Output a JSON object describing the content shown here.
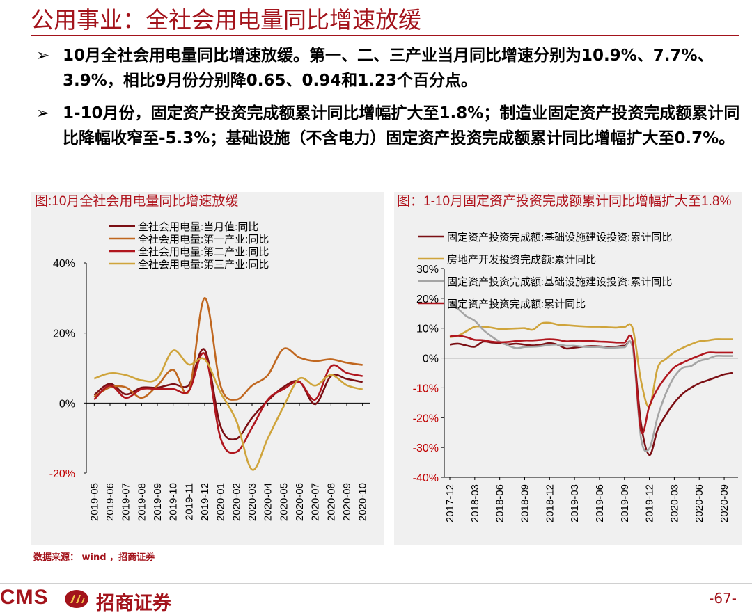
{
  "page": {
    "title": "公用事业：全社会用电量同比增速放缓",
    "bullet_marker": "➢",
    "bullets": [
      "10月全社会用电量同比增速放缓。第一、二、三产业当月同比增速分别为10.9%、7.7%、3.9%，相比9月份分别降0.65、0.94和1.23个百分点。",
      "1-10月份，固定资产投资完成额累计同比增幅扩大至1.8%；制造业固定资产投资完成额累计同比降幅收窄至-5.3%；基础设施（不含电力）固定资产投资完成额累计同比增幅扩大至0.7%。"
    ],
    "source": "数据来源： wind ，招商证券",
    "logo_text": "CMS",
    "logo_cn": "招商证券",
    "page_number": "-67-"
  },
  "chart_data": [
    {
      "type": "line",
      "title": "图:10月全社会用电量同比增速放缓",
      "categories": [
        "2019-05",
        "2019-06",
        "2019-07",
        "2019-08",
        "2019-09",
        "2019-10",
        "2019-11",
        "2019-12",
        "2020-01",
        "2020-02",
        "2020-03",
        "2020-04",
        "2020-05",
        "2020-06",
        "2020-07",
        "2020-08",
        "2020-09",
        "2020-10"
      ],
      "yticks": [
        "40%",
        "20%",
        "0%",
        "-20%"
      ],
      "ylim": [
        -20,
        40
      ],
      "legend_position": "top",
      "series": [
        {
          "name": "全社会用电量:当月值:同比",
          "color": "#7b0f14",
          "values": [
            2.3,
            5.5,
            2.5,
            4.4,
            4.4,
            5.4,
            5.2,
            15.2,
            -6.6,
            -10.2,
            -4.2,
            0.7,
            4.6,
            6.1,
            -0.3,
            7.7,
            6.9,
            6.0
          ]
        },
        {
          "name": "全社会用电量:第一产业:同比",
          "color": "#c0671f",
          "values": [
            1.8,
            4.5,
            4.5,
            1.5,
            5.0,
            9.5,
            3.5,
            30.0,
            5.0,
            1.0,
            5.0,
            8.0,
            15.5,
            13.0,
            12.0,
            12.5,
            11.5,
            10.9
          ]
        },
        {
          "name": "全社会用电量:第二产业:同比",
          "color": "#b0161e",
          "values": [
            1.0,
            5.0,
            1.5,
            4.0,
            4.0,
            4.0,
            3.5,
            14.0,
            -10.0,
            -14.0,
            -7.0,
            1.0,
            4.0,
            6.0,
            1.0,
            10.5,
            8.6,
            7.7
          ]
        },
        {
          "name": "全社会用电量:第三产业:同比",
          "color": "#cfa43b",
          "values": [
            7.0,
            8.5,
            8.0,
            6.5,
            7.0,
            15.0,
            11.0,
            12.5,
            3.0,
            -5.0,
            -19.0,
            -10.0,
            -1.0,
            7.0,
            5.0,
            8.0,
            5.1,
            3.9
          ]
        }
      ]
    },
    {
      "type": "line",
      "title": "图：1-10月固定资产投资完成额累计同比增幅扩大至1.8%",
      "categories": [
        "2017-12",
        "2018-03",
        "2018-06",
        "2018-09",
        "2018-12",
        "2019-03",
        "2019-06",
        "2019-09",
        "2019-12",
        "2020-03",
        "2020-06",
        "2020-09"
      ],
      "yticks": [
        "30%",
        "20%",
        "10%",
        "0%",
        "-10%",
        "-20%",
        "-30%",
        "-40%"
      ],
      "ylim": [
        -40,
        30
      ],
      "legend_position": "top",
      "series": [
        {
          "name": "固定资产投资完成额:基础设施建设投资:累计同比",
          "color": "#7b0f14",
          "x": [
            0,
            1,
            2,
            3,
            4,
            5,
            6,
            7,
            8,
            9,
            10,
            11,
            12,
            13,
            14,
            15,
            16,
            17,
            18,
            19,
            20,
            21,
            22,
            23,
            24,
            25,
            26,
            27,
            28,
            29,
            30,
            31,
            32,
            33,
            34
          ],
          "values": [
            4.5,
            4.8,
            4.2,
            3.8,
            5.5,
            5.2,
            5.0,
            4.6,
            4.8,
            4.5,
            4.2,
            4.5,
            5.0,
            4.4,
            3.2,
            3.5,
            3.8,
            4.0,
            3.9,
            3.7,
            3.8,
            4.1,
            3.5,
            -22.0,
            -32.5,
            -24.0,
            -19.0,
            -15.0,
            -12.0,
            -10.0,
            -8.5,
            -7.5,
            -6.5,
            -5.5,
            -5.0
          ]
        },
        {
          "name": "房地产开发投资完成额:累计同比",
          "color": "#cfa43b",
          "x": [
            0,
            1,
            2,
            3,
            4,
            5,
            6,
            7,
            8,
            9,
            10,
            11,
            12,
            13,
            14,
            15,
            16,
            17,
            18,
            19,
            20,
            21,
            22,
            23,
            24,
            25,
            26,
            27,
            28,
            29,
            30,
            31,
            32,
            33,
            34
          ],
          "values": [
            7.0,
            7.5,
            9.0,
            10.5,
            10.5,
            10.2,
            9.7,
            9.8,
            9.9,
            10.0,
            9.5,
            11.6,
            11.8,
            11.2,
            11.0,
            10.8,
            10.6,
            10.5,
            10.5,
            10.3,
            10.2,
            10.4,
            9.9,
            -7.7,
            -16.3,
            -3.3,
            -0.3,
            1.9,
            3.4,
            4.6,
            5.6,
            5.9,
            6.3,
            6.3,
            6.3
          ]
        },
        {
          "name": "固定资产投资完成额:基础设施建设投资:累计同比",
          "color": "#a5a5a5",
          "x": [
            0,
            1,
            2,
            3,
            4,
            5,
            6,
            7,
            8,
            9,
            10,
            11,
            12,
            13,
            14,
            15,
            16,
            17,
            18,
            19,
            20,
            21,
            22,
            23,
            24,
            25,
            26,
            27,
            28,
            29,
            30,
            31,
            32,
            33,
            34
          ],
          "values": [
            19.0,
            16.5,
            14.0,
            12.5,
            9.5,
            7.3,
            5.5,
            4.2,
            3.3,
            3.7,
            3.8,
            4.0,
            4.4,
            4.5,
            4.1,
            4.1,
            3.8,
            3.7,
            3.7,
            3.4,
            3.5,
            3.6,
            3.3,
            -26.9,
            -30.3,
            -19.7,
            -11.8,
            -6.3,
            -3.3,
            -2.7,
            -1.0,
            -0.3,
            0.7,
            0.7,
            0.7
          ]
        },
        {
          "name": "固定资产投资完成额:累计同比",
          "color": "#b0161e",
          "x": [
            0,
            1,
            2,
            3,
            4,
            5,
            6,
            7,
            8,
            9,
            10,
            11,
            12,
            13,
            14,
            15,
            16,
            17,
            18,
            19,
            20,
            21,
            22,
            23,
            24,
            25,
            26,
            27,
            28,
            29,
            30,
            31,
            32,
            33,
            34
          ],
          "values": [
            7.2,
            7.5,
            7.0,
            6.1,
            6.0,
            5.5,
            5.3,
            5.4,
            5.7,
            5.9,
            5.9,
            6.1,
            6.3,
            6.1,
            5.6,
            5.8,
            5.8,
            5.7,
            5.5,
            5.4,
            5.2,
            5.2,
            5.4,
            -24.5,
            -16.1,
            -10.3,
            -6.3,
            -3.1,
            -1.6,
            -0.3,
            0.8,
            1.8,
            1.8,
            1.8,
            1.8
          ]
        }
      ]
    }
  ]
}
